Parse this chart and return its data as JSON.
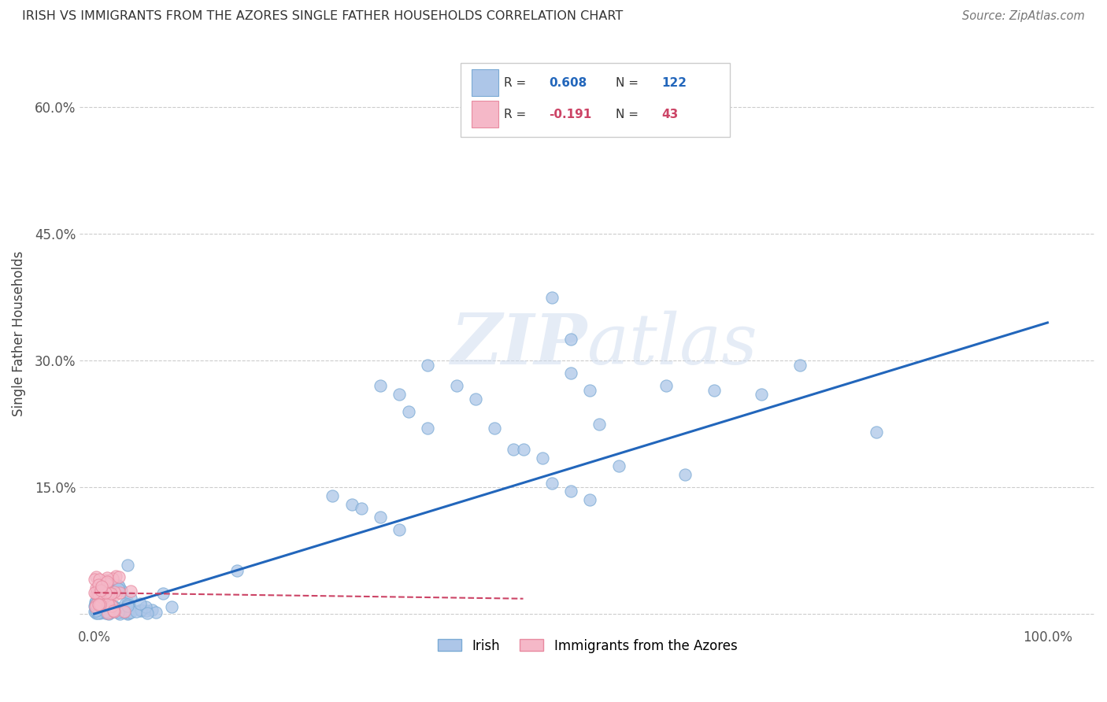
{
  "title": "IRISH VS IMMIGRANTS FROM THE AZORES SINGLE FATHER HOUSEHOLDS CORRELATION CHART",
  "source": "Source: ZipAtlas.com",
  "ylabel": "Single Father Households",
  "ytick_values": [
    0,
    0.15,
    0.3,
    0.45,
    0.6
  ],
  "ytick_labels": [
    "",
    "15.0%",
    "30.0%",
    "45.0%",
    "60.0%"
  ],
  "xtick_values": [
    0,
    0.25,
    0.5,
    0.75,
    1.0
  ],
  "xtick_labels": [
    "0.0%",
    "",
    "",
    "",
    "100.0%"
  ],
  "xlim": [
    -0.015,
    1.05
  ],
  "ylim": [
    -0.015,
    0.68
  ],
  "irish_R": 0.608,
  "irish_N": 122,
  "azores_R": -0.191,
  "azores_N": 43,
  "irish_color": "#adc6e8",
  "irish_edge_color": "#7aaad4",
  "azores_color": "#f5b8c8",
  "azores_edge_color": "#e88aa0",
  "irish_line_color": "#2266bb",
  "azores_line_color": "#cc4466",
  "watermark": "ZIPatlas",
  "legend_label_irish": "Irish",
  "legend_label_azores": "Immigrants from the Azores",
  "irish_line_x0": 0.0,
  "irish_line_y0": 0.0,
  "irish_line_x1": 1.0,
  "irish_line_y1": 0.345,
  "azores_line_x0": 0.0,
  "azores_line_y0": 0.025,
  "azores_line_x1": 0.45,
  "azores_line_y1": 0.018
}
